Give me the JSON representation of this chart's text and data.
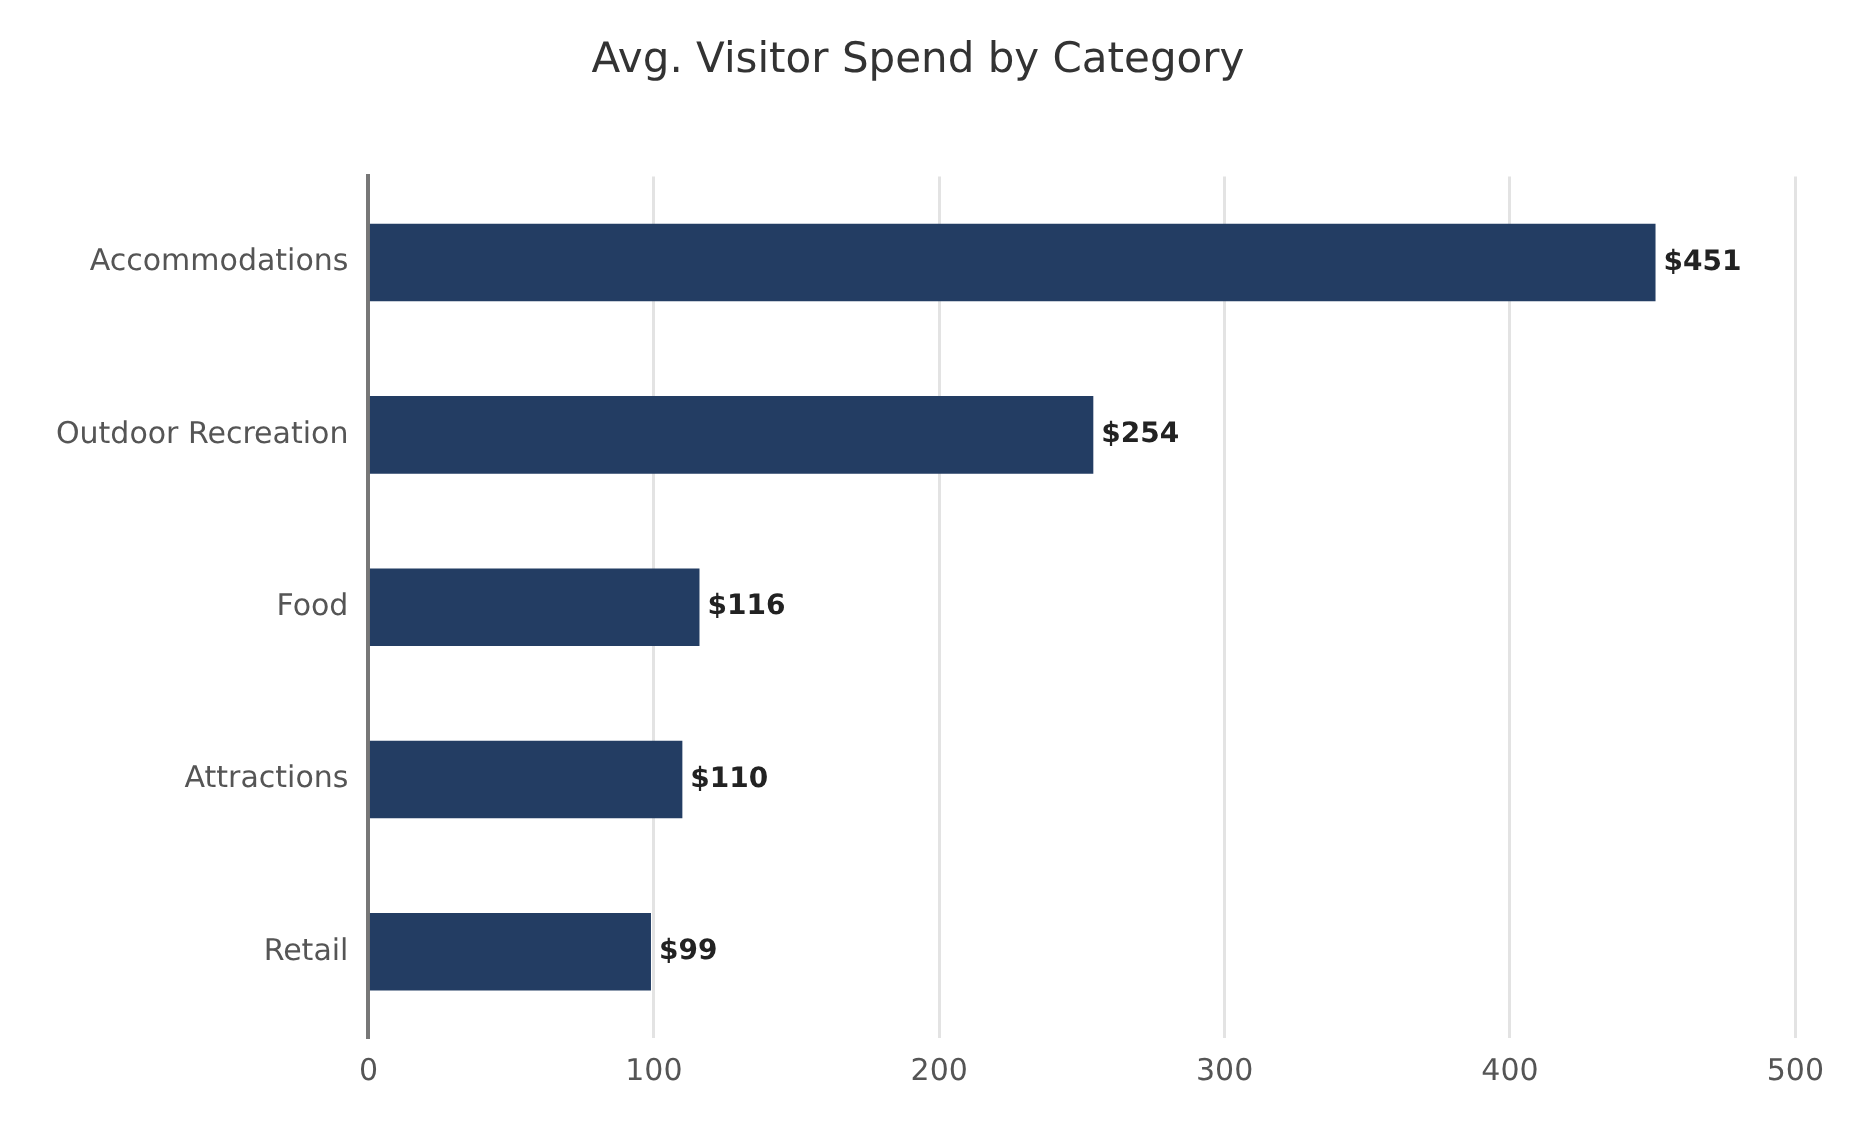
{
  "chart_data": {
    "type": "bar",
    "orientation": "horizontal",
    "title": "Avg. Visitor Spend by Category",
    "categories": [
      "Accommodations",
      "Outdoor Recreation",
      "Food",
      "Attractions",
      "Retail"
    ],
    "values": [
      451,
      254,
      116,
      110,
      99
    ],
    "value_labels": [
      "$451",
      "$254",
      "$116",
      "$110",
      "$99"
    ],
    "color": "#233d63",
    "xlim": [
      0,
      500
    ],
    "xticks": [
      0,
      100,
      200,
      300,
      400,
      500
    ],
    "grid": "x",
    "legend": false
  }
}
